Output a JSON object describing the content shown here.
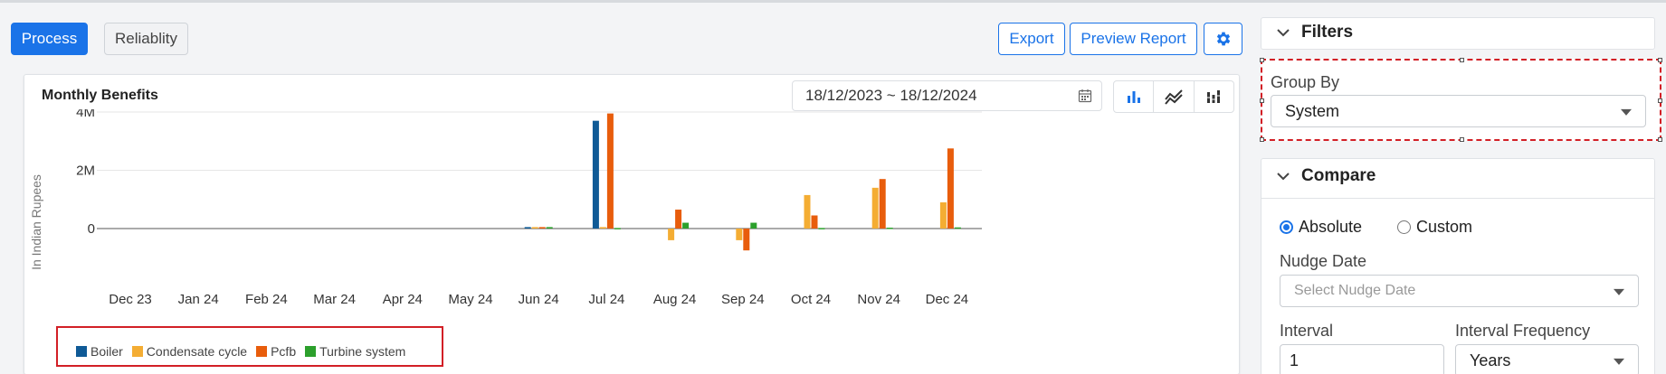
{
  "tabs": {
    "process": "Process",
    "reliability": "Reliablity"
  },
  "toolbar": {
    "export": "Export",
    "preview_report": "Preview Report"
  },
  "card": {
    "title": "Monthly Benefits",
    "date_range": "18/12/2023 ~ 18/12/2024"
  },
  "colors": {
    "accent": "#1a73e8",
    "boiler": "#0f5a96",
    "condensate": "#f4ad33",
    "pcfb": "#e85d0c",
    "turbine": "#2ca02c"
  },
  "chart_data": {
    "type": "bar",
    "ylabel": "In Indian Rupees",
    "ylim": [
      -0.8,
      4
    ],
    "yticks": [
      {
        "value": 4,
        "label": "4M"
      },
      {
        "value": 2,
        "label": "2M"
      },
      {
        "value": 0,
        "label": "0"
      }
    ],
    "categories": [
      "Dec 23",
      "Jan 24",
      "Feb 24",
      "Mar 24",
      "Apr 24",
      "May 24",
      "Jun 24",
      "Jul 24",
      "Aug 24",
      "Sep 24",
      "Oct 24",
      "Nov 24",
      "Dec 24"
    ],
    "series": [
      {
        "name": "Boiler",
        "color": "#0f5a96",
        "values": [
          0,
          0,
          0,
          0,
          0,
          0,
          0.05,
          3.7,
          0,
          0,
          0,
          0,
          0
        ]
      },
      {
        "name": "Condensate cycle",
        "color": "#f4ad33",
        "values": [
          0,
          0,
          0,
          0,
          0,
          0,
          0.05,
          0.05,
          -0.4,
          -0.4,
          1.15,
          1.4,
          0.9
        ]
      },
      {
        "name": "Pcfb",
        "color": "#e85d0c",
        "values": [
          0,
          0,
          0,
          0,
          0,
          0,
          0.05,
          3.95,
          0.65,
          -0.75,
          0.45,
          1.7,
          2.75
        ]
      },
      {
        "name": "Turbine system",
        "color": "#2ca02c",
        "values": [
          0,
          0,
          0,
          0,
          0,
          0,
          0.05,
          0.02,
          0.2,
          0.2,
          0.02,
          0.03,
          0.04
        ]
      }
    ],
    "grid": true,
    "legend": "bottom-left"
  },
  "filters": {
    "title": "Filters",
    "group_by_label": "Group By",
    "group_by_value": "System"
  },
  "compare": {
    "title": "Compare",
    "absolute_label": "Absolute",
    "custom_label": "Custom",
    "nudge_date_label": "Nudge Date",
    "nudge_date_placeholder": "Select Nudge Date",
    "interval_label": "Interval",
    "interval_value": "1",
    "interval_frequency_label": "Interval Frequency",
    "interval_frequency_value": "Years"
  }
}
